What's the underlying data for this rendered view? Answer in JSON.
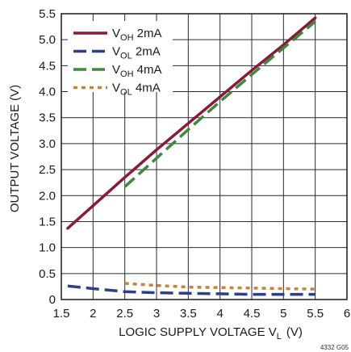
{
  "chart_data": {
    "type": "line",
    "xlabel": {
      "main": "LOGIC SUPPLY VOLTAGE V",
      "sub": "L",
      "unit": "(V)"
    },
    "ylabel": "OUTPUT VOLTAGE (V)",
    "xlim": [
      1.5,
      6
    ],
    "ylim": [
      0,
      5.5
    ],
    "xticks": [
      "1.5",
      "2",
      "2.5",
      "3",
      "3.5",
      "4",
      "4.5",
      "5",
      "5.5",
      "6"
    ],
    "yticks": [
      "0",
      "0.5",
      "1.0",
      "1.5",
      "2.0",
      "2.5",
      "3.0",
      "3.5",
      "4.0",
      "4.5",
      "5.0",
      "5.5"
    ],
    "grid": true,
    "legend_position": "top-left",
    "figure_id": "4332 G05",
    "series": [
      {
        "name": "VOH 2mA",
        "label_main": "V",
        "label_sub": "OH",
        "label_rest": " 2mA",
        "color": "#8b1a3a",
        "style": "solid",
        "x": [
          1.6,
          2.5,
          3.0,
          3.5,
          4.0,
          4.5,
          5.0,
          5.5
        ],
        "y": [
          1.37,
          2.35,
          2.88,
          3.39,
          3.9,
          4.41,
          4.9,
          5.42
        ]
      },
      {
        "name": "VOL 2mA",
        "label_main": "V",
        "label_sub": "OL",
        "label_rest": " 2mA",
        "color": "#2b3f8e",
        "style": "dashed",
        "x": [
          1.6,
          2.0,
          2.5,
          3.0,
          3.5,
          4.0,
          4.5,
          5.0,
          5.5
        ],
        "y": [
          0.26,
          0.21,
          0.15,
          0.13,
          0.12,
          0.11,
          0.1,
          0.1,
          0.1
        ]
      },
      {
        "name": "VOH 4mA",
        "label_main": "V",
        "label_sub": "OH",
        "label_rest": " 4mA",
        "color": "#3a8a3a",
        "style": "dashed",
        "x": [
          2.5,
          3.0,
          3.5,
          4.0,
          4.5,
          5.0,
          5.5
        ],
        "y": [
          2.17,
          2.72,
          3.27,
          3.81,
          4.33,
          4.84,
          5.35
        ]
      },
      {
        "name": "VOL 4mA",
        "label_main": "V",
        "label_sub": "OL",
        "label_rest": " 4mA",
        "color": "#c8823a",
        "style": "dotted",
        "x": [
          2.5,
          3.0,
          3.5,
          4.0,
          4.5,
          5.0,
          5.5
        ],
        "y": [
          0.31,
          0.27,
          0.24,
          0.23,
          0.22,
          0.21,
          0.2
        ]
      }
    ]
  }
}
